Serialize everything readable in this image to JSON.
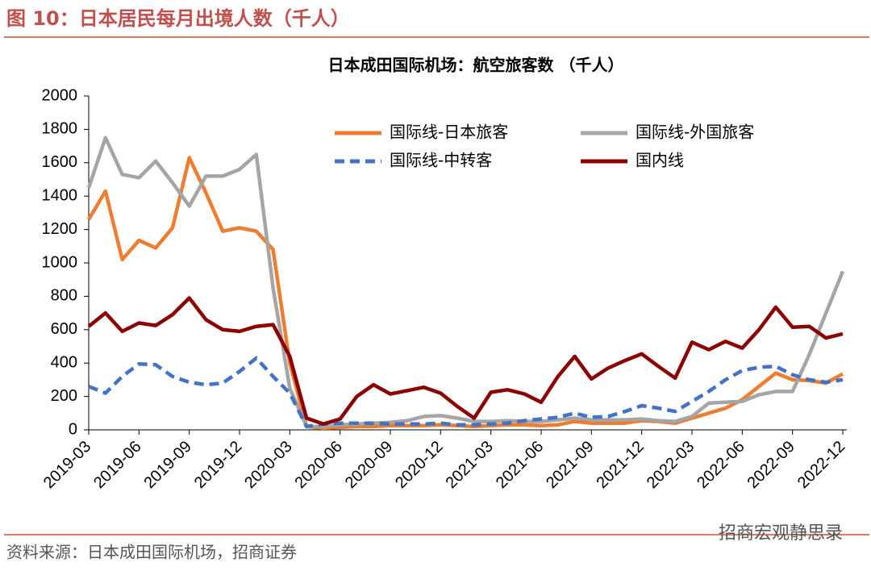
{
  "header": {
    "title": "图 10：日本居民每月出境人数（千人）",
    "source": "资料来源：日本成田国际机场，招商证券",
    "watermark": "招商宏观静思录"
  },
  "chart_data": {
    "type": "line",
    "title": "日本成田国际机场：航空旅客数 （千人）",
    "categories": [
      "2019-03",
      null,
      null,
      "2019-06",
      null,
      null,
      "2019-09",
      null,
      null,
      "2019-12",
      null,
      null,
      "2020-03",
      null,
      null,
      "2020-06",
      null,
      null,
      "2020-09",
      null,
      null,
      "2020-12",
      null,
      null,
      "2021-03",
      null,
      null,
      "2021-06",
      null,
      null,
      "2021-09",
      null,
      null,
      "2021-12",
      null,
      null,
      "2022-03",
      null,
      null,
      "2022-06",
      null,
      null,
      "2022-09",
      null,
      null,
      "2022-12"
    ],
    "series": [
      {
        "name": "国际线-日本旅客",
        "color": "#ed7d31",
        "dashed": false,
        "values": [
          1260,
          1430,
          1020,
          1135,
          1090,
          1210,
          1630,
          1420,
          1190,
          1210,
          1190,
          1080,
          400,
          20,
          10,
          15,
          20,
          20,
          25,
          25,
          25,
          30,
          25,
          20,
          25,
          30,
          30,
          25,
          30,
          50,
          40,
          40,
          40,
          55,
          50,
          40,
          70,
          100,
          130,
          180,
          260,
          340,
          300,
          295,
          280,
          335
        ]
      },
      {
        "name": "国际线-外国旅客",
        "color": "#a5a5a5",
        "dashed": false,
        "values": [
          1450,
          1750,
          1530,
          1510,
          1610,
          1480,
          1340,
          1520,
          1520,
          1560,
          1650,
          850,
          250,
          20,
          20,
          30,
          35,
          40,
          45,
          55,
          80,
          85,
          70,
          50,
          50,
          55,
          50,
          50,
          60,
          70,
          60,
          60,
          60,
          65,
          55,
          50,
          80,
          160,
          165,
          170,
          210,
          230,
          230,
          450,
          700,
          950
        ]
      },
      {
        "name": "国际线-中转客",
        "color": "#4472c4",
        "dashed": true,
        "values": [
          260,
          220,
          320,
          395,
          390,
          320,
          285,
          270,
          280,
          350,
          430,
          320,
          220,
          20,
          35,
          40,
          40,
          40,
          35,
          35,
          35,
          40,
          30,
          30,
          35,
          40,
          55,
          65,
          75,
          100,
          75,
          80,
          110,
          145,
          130,
          110,
          170,
          230,
          300,
          355,
          375,
          380,
          330,
          300,
          285,
          300
        ]
      },
      {
        "name": "国内线",
        "color": "#8b0000",
        "dashed": false,
        "values": [
          620,
          700,
          590,
          640,
          625,
          690,
          790,
          660,
          600,
          590,
          620,
          630,
          440,
          70,
          35,
          65,
          200,
          270,
          215,
          235,
          255,
          220,
          140,
          70,
          225,
          240,
          215,
          165,
          320,
          440,
          305,
          370,
          415,
          455,
          380,
          310,
          525,
          480,
          530,
          490,
          600,
          735,
          615,
          620,
          550,
          575
        ]
      }
    ],
    "ylim": [
      0,
      2000
    ],
    "yticks": [
      0,
      200,
      400,
      600,
      800,
      1000,
      1200,
      1400,
      1600,
      1800,
      2000
    ]
  }
}
